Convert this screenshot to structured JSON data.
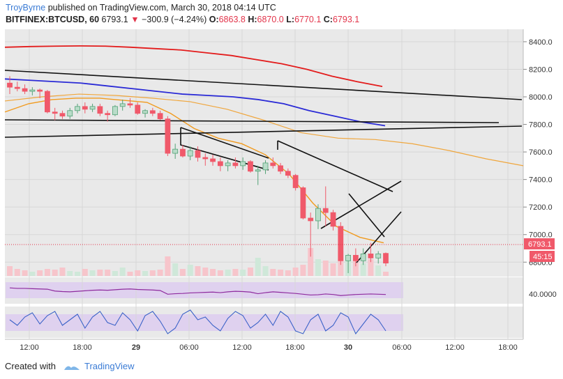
{
  "header": {
    "author": "TroyByrne",
    "published_text": "published on TradingView.com, March 30, 2018 04:14 UTC",
    "symbol": "BITFINEX:BTCUSD, 60",
    "last": "6793.1",
    "change": "−300.9 (−4.24%)",
    "o_label": "O:",
    "o_value": "6863.8",
    "h_label": "H:",
    "h_value": "6870.0",
    "l_label": "L:",
    "l_value": "6770.1",
    "c_label": "C:",
    "c_value": "6793.1"
  },
  "footer": {
    "created_with": "Created with",
    "brand": "TradingView"
  },
  "colors": {
    "up": "#b9dcc9",
    "up_edge": "#53a276",
    "down": "#f0596a",
    "ma_red": "#e31b1b",
    "ma_blue": "#2a2ad6",
    "ma_orange": "#f19a1d",
    "rsi": "#8e2a9e",
    "stoch": "#3b62c8"
  },
  "chart_data": {
    "type": "candlestick",
    "y_ticks": [
      "8400.0",
      "8200.0",
      "8000.0",
      "7800.0",
      "7600.0",
      "7400.0",
      "7200.0",
      "7000.0",
      "6800.0"
    ],
    "ylim": [
      6680,
      8440
    ],
    "x_ticks": [
      "12:00",
      "18:00",
      "29",
      "06:00",
      "12:00",
      "18:00",
      "30",
      "06:00",
      "12:00",
      "18:00"
    ],
    "price_label": "6793.1",
    "countdown_label": "45:15",
    "rsi_label": "40.0000",
    "candles": [
      [
        8100,
        8150,
        8020,
        8070
      ],
      [
        8070,
        8110,
        8040,
        8060
      ],
      [
        8060,
        8090,
        8020,
        8040
      ],
      [
        8040,
        8070,
        8010,
        8050
      ],
      [
        8050,
        8060,
        7990,
        8040
      ],
      [
        8040,
        8050,
        7880,
        7890
      ],
      [
        7890,
        7920,
        7830,
        7880
      ],
      [
        7880,
        7900,
        7840,
        7860
      ],
      [
        7860,
        7920,
        7840,
        7900
      ],
      [
        7900,
        7950,
        7880,
        7930
      ],
      [
        7930,
        7960,
        7880,
        7910
      ],
      [
        7910,
        7950,
        7890,
        7930
      ],
      [
        7930,
        7950,
        7860,
        7880
      ],
      [
        7880,
        7900,
        7820,
        7870
      ],
      [
        7870,
        7940,
        7860,
        7930
      ],
      [
        7930,
        7980,
        7900,
        7950
      ],
      [
        7950,
        7990,
        7920,
        7940
      ],
      [
        7940,
        7960,
        7870,
        7880
      ],
      [
        7880,
        7910,
        7850,
        7900
      ],
      [
        7900,
        7920,
        7860,
        7880
      ],
      [
        7880,
        7900,
        7830,
        7840
      ],
      [
        7840,
        7860,
        7570,
        7590
      ],
      [
        7590,
        7660,
        7550,
        7620
      ],
      [
        7620,
        7650,
        7560,
        7570
      ],
      [
        7570,
        7640,
        7540,
        7610
      ],
      [
        7610,
        7640,
        7530,
        7560
      ],
      [
        7560,
        7590,
        7500,
        7550
      ],
      [
        7550,
        7580,
        7500,
        7530
      ],
      [
        7530,
        7560,
        7460,
        7500
      ],
      [
        7500,
        7540,
        7460,
        7520
      ],
      [
        7520,
        7560,
        7480,
        7500
      ],
      [
        7500,
        7560,
        7470,
        7530
      ],
      [
        7530,
        7540,
        7450,
        7460
      ],
      [
        7460,
        7500,
        7360,
        7470
      ],
      [
        7470,
        7540,
        7440,
        7520
      ],
      [
        7520,
        7560,
        7480,
        7500
      ],
      [
        7500,
        7520,
        7440,
        7460
      ],
      [
        7460,
        7480,
        7410,
        7430
      ],
      [
        7430,
        7440,
        7320,
        7340
      ],
      [
        7340,
        7350,
        7110,
        7120
      ],
      [
        7120,
        7160,
        6840,
        7100
      ],
      [
        7100,
        7220,
        7040,
        7190
      ],
      [
        7190,
        7350,
        7060,
        7160
      ],
      [
        7160,
        7180,
        7030,
        7060
      ],
      [
        7060,
        7090,
        6780,
        6810
      ],
      [
        6810,
        6860,
        6720,
        6850
      ],
      [
        6850,
        6900,
        6770,
        6810
      ],
      [
        6810,
        6900,
        6780,
        6860
      ],
      [
        6860,
        6940,
        6800,
        6830
      ],
      [
        6830,
        6880,
        6790,
        6860
      ],
      [
        6863.8,
        6870,
        6770.1,
        6793.1
      ]
    ],
    "series": [
      {
        "values": [
          8360,
          8365,
          8368,
          8370,
          8368,
          8360,
          8350,
          8340,
          8320,
          8300,
          8270,
          8240,
          8200,
          8150,
          8110,
          8075
        ]
      },
      {
        "values": [
          8130,
          8120,
          8110,
          8100,
          8080,
          8060,
          8040,
          8020,
          8010,
          8000,
          7980,
          7950,
          7900,
          7860,
          7820,
          7790
        ]
      },
      {
        "values": [
          7890,
          7950,
          7980,
          7990,
          7990,
          7975,
          7960,
          7880,
          7770,
          7700,
          7660,
          7580,
          7440,
          7230,
          7060,
          6980,
          6940
        ]
      },
      {
        "values": [
          7970,
          8000,
          8020,
          8010,
          7990,
          7965,
          7910,
          7830,
          7740,
          7700,
          7690,
          7660,
          7610,
          7550,
          7500
        ]
      }
    ],
    "volume": [
      14,
      10,
      8,
      6,
      8,
      10,
      9,
      12,
      7,
      6,
      10,
      8,
      9,
      9,
      7,
      12,
      6,
      8,
      7,
      8,
      9,
      28,
      18,
      10,
      16,
      14,
      12,
      10,
      8,
      9,
      10,
      9,
      12,
      26,
      14,
      10,
      9,
      8,
      12,
      16,
      40,
      24,
      22,
      18,
      36,
      30,
      22,
      18,
      24,
      15,
      6
    ],
    "rsi_values": [
      60,
      58,
      58,
      57,
      56,
      55,
      48,
      46,
      45,
      47,
      49,
      51,
      52,
      51,
      53,
      55,
      56,
      54,
      53,
      52,
      50,
      36,
      38,
      39,
      41,
      42,
      43,
      44,
      42,
      45,
      47,
      46,
      44,
      38,
      42,
      45,
      43,
      41,
      39,
      36,
      33,
      34,
      37,
      35,
      31,
      33,
      35,
      36,
      37,
      36,
      35
    ],
    "stoch_values": [
      60,
      40,
      70,
      85,
      45,
      75,
      90,
      40,
      60,
      80,
      30,
      70,
      90,
      50,
      40,
      85,
      60,
      20,
      75,
      90,
      55,
      10,
      30,
      80,
      95,
      60,
      70,
      40,
      20,
      65,
      90,
      75,
      30,
      50,
      80,
      40,
      90,
      70,
      20,
      10,
      60,
      80,
      20,
      40,
      85,
      70,
      10,
      45,
      80,
      60,
      20
    ]
  }
}
